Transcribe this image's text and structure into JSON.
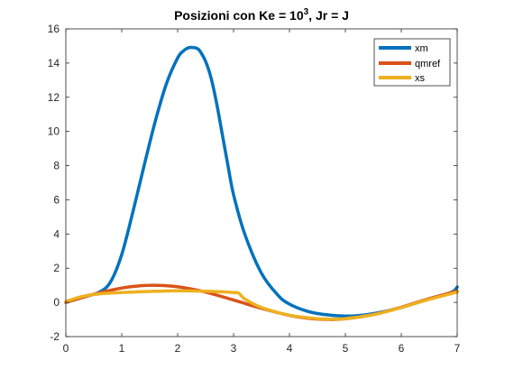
{
  "chart_data": {
    "type": "line",
    "title": {
      "prefix": "Posizioni con Ke = 10",
      "superscript": "3",
      "suffix": ", Jr = J"
    },
    "xlabel": "",
    "ylabel": "",
    "xlim": [
      0,
      7
    ],
    "ylim": [
      -2,
      16
    ],
    "xticks": [
      "0",
      "1",
      "2",
      "3",
      "4",
      "5",
      "6",
      "7"
    ],
    "yticks": [
      "-2",
      "0",
      "2",
      "4",
      "6",
      "8",
      "10",
      "12",
      "14",
      "16"
    ],
    "grid": false,
    "legend_position": "top-right",
    "series": [
      {
        "name": "xm",
        "color": "#0072BD",
        "x": [
          0,
          0.3,
          0.6,
          0.8,
          1.0,
          1.2,
          1.4,
          1.6,
          1.8,
          2.0,
          2.1,
          2.2,
          2.3,
          2.35,
          2.4,
          2.5,
          2.6,
          2.7,
          2.8,
          2.9,
          3.0,
          3.2,
          3.5,
          3.8,
          4.0,
          4.3,
          4.6,
          5.0,
          5.3,
          5.6,
          6.0,
          6.5,
          6.9,
          7.0
        ],
        "y": [
          0,
          0.3,
          0.6,
          1.2,
          2.8,
          5.3,
          8.0,
          10.6,
          12.8,
          14.3,
          14.7,
          14.9,
          14.9,
          14.85,
          14.7,
          14.1,
          13.1,
          11.6,
          9.8,
          8.0,
          6.3,
          4.0,
          1.7,
          0.4,
          -0.1,
          -0.5,
          -0.7,
          -0.8,
          -0.75,
          -0.6,
          -0.3,
          0.2,
          0.6,
          0.9
        ]
      },
      {
        "name": "qmref",
        "color": "#D95319",
        "x": [
          0,
          0.5,
          1.0,
          1.3,
          1.57,
          1.9,
          2.2,
          2.5,
          3.0,
          3.5,
          4.0,
          4.4,
          4.71,
          5.0,
          5.5,
          6.0,
          6.5,
          7.0
        ],
        "y": [
          0,
          0.48,
          0.84,
          0.96,
          1.0,
          0.95,
          0.81,
          0.6,
          0.14,
          -0.35,
          -0.76,
          -0.95,
          -1.0,
          -0.96,
          -0.71,
          -0.28,
          0.22,
          0.66
        ]
      },
      {
        "name": "xs",
        "color": "#EDB120",
        "x": [
          0,
          0.3,
          0.6,
          1.0,
          1.5,
          2.0,
          2.5,
          3.0,
          3.1,
          3.2,
          3.5,
          4.0,
          4.5,
          4.8,
          5.0,
          5.5,
          6.0,
          6.5,
          7.0
        ],
        "y": [
          0.05,
          0.35,
          0.5,
          0.58,
          0.64,
          0.68,
          0.65,
          0.58,
          0.52,
          0.2,
          -0.3,
          -0.75,
          -0.95,
          -0.98,
          -0.95,
          -0.72,
          -0.3,
          0.18,
          0.6
        ]
      }
    ]
  }
}
